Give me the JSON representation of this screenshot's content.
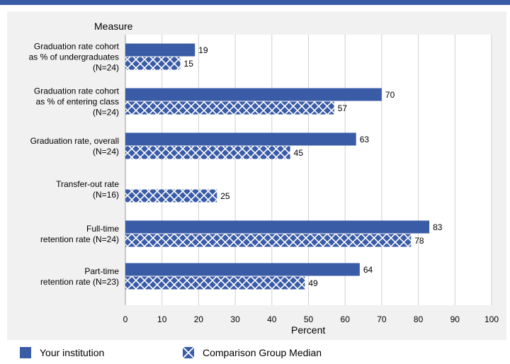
{
  "chart_data": {
    "type": "bar",
    "orientation": "horizontal",
    "y_axis_title": "Measure",
    "xlabel": "Percent",
    "xlim": [
      0,
      100
    ],
    "x_ticks": [
      0,
      10,
      20,
      30,
      40,
      50,
      60,
      70,
      80,
      90,
      100
    ],
    "grid": true,
    "categories": [
      [
        "Graduation rate cohort",
        "as % of undergraduates",
        "(N=24)"
      ],
      [
        "Graduation rate cohort",
        "as % of entering class",
        "(N=24)"
      ],
      [
        "Graduation rate, overall",
        "(N=24)"
      ],
      [
        "Transfer-out rate",
        "(N=16)"
      ],
      [
        "Full-time",
        "retention rate (N=24)"
      ],
      [
        "Part-time",
        "retention rate (N=23)"
      ]
    ],
    "series": [
      {
        "name": "Your institution",
        "values": [
          19,
          70,
          63,
          null,
          83,
          64
        ],
        "color": "#3a5ba6",
        "pattern": "solid"
      },
      {
        "name": "Comparison Group Median",
        "values": [
          15,
          57,
          45,
          25,
          78,
          49
        ],
        "color": "#3a5ba6",
        "pattern": "crosshatch"
      }
    ],
    "legend_position": "bottom"
  }
}
